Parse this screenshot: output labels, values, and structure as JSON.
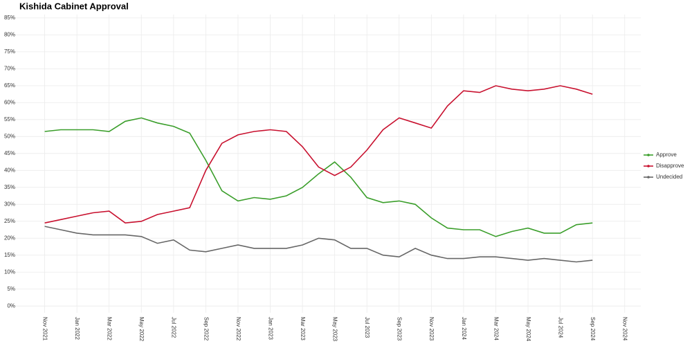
{
  "chart_data": {
    "type": "line",
    "title": "Kishida Cabinet Approval",
    "x": [
      "2021-11",
      "2021-12",
      "2022-01",
      "2022-02",
      "2022-03",
      "2022-04",
      "2022-05",
      "2022-06",
      "2022-07",
      "2022-08",
      "2022-09",
      "2022-10",
      "2022-11",
      "2022-12",
      "2023-01",
      "2023-02",
      "2023-03",
      "2023-04",
      "2023-05",
      "2023-06",
      "2023-07",
      "2023-08",
      "2023-09",
      "2023-10",
      "2023-11",
      "2023-12",
      "2024-01",
      "2024-02",
      "2024-03",
      "2024-04",
      "2024-05",
      "2024-06",
      "2024-07",
      "2024-08",
      "2024-09"
    ],
    "series": [
      {
        "name": "Approve",
        "color": "#3a9e2a",
        "values": [
          51.5,
          52,
          52,
          52,
          51.5,
          54.5,
          55.5,
          54,
          53,
          51,
          43,
          34,
          31,
          32,
          31.5,
          32.5,
          35,
          39,
          42.5,
          38,
          32,
          30.5,
          31,
          30,
          26,
          23,
          22.5,
          22.5,
          20.5,
          22,
          23,
          21.5,
          21.5,
          24,
          24.5
        ]
      },
      {
        "name": "Disapprove",
        "color": "#c8102e",
        "values": [
          24.5,
          25.5,
          26.5,
          27.5,
          28,
          24.5,
          25,
          27,
          28,
          29,
          40,
          48,
          50.5,
          51.5,
          52,
          51.5,
          47,
          41,
          38.5,
          41,
          46,
          52,
          55.5,
          54,
          52.5,
          59,
          63.5,
          63,
          65,
          64,
          63.5,
          64,
          65,
          64,
          62.5
        ]
      },
      {
        "name": "Undecided",
        "color": "#666666",
        "values": [
          23.5,
          22.5,
          21.5,
          21,
          21,
          21,
          20.5,
          18.5,
          19.5,
          16.5,
          16,
          17,
          18,
          17,
          17,
          17,
          18,
          20,
          19.5,
          17,
          17,
          15,
          14.5,
          17,
          15,
          14,
          14,
          14.5,
          14.5,
          14,
          13.5,
          14,
          13.5,
          13,
          13.5
        ]
      }
    ],
    "xlim": [
      "2021-09",
      "2024-12"
    ],
    "xticks": [
      {
        "value": "2021-11",
        "label": "Nov 2021"
      },
      {
        "value": "2022-01",
        "label": "Jan 2022"
      },
      {
        "value": "2022-03",
        "label": "Mar 2022"
      },
      {
        "value": "2022-05",
        "label": "May 2022"
      },
      {
        "value": "2022-07",
        "label": "Jul 2022"
      },
      {
        "value": "2022-09",
        "label": "Sep 2022"
      },
      {
        "value": "2022-11",
        "label": "Nov 2022"
      },
      {
        "value": "2023-01",
        "label": "Jan 2023"
      },
      {
        "value": "2023-03",
        "label": "Mar 2023"
      },
      {
        "value": "2023-05",
        "label": "May 2023"
      },
      {
        "value": "2023-07",
        "label": "Jul 2023"
      },
      {
        "value": "2023-09",
        "label": "Sep 2023"
      },
      {
        "value": "2023-11",
        "label": "Nov 2023"
      },
      {
        "value": "2024-01",
        "label": "Jan 2024"
      },
      {
        "value": "2024-03",
        "label": "Mar 2024"
      },
      {
        "value": "2024-05",
        "label": "May 2024"
      },
      {
        "value": "2024-07",
        "label": "Jul 2024"
      },
      {
        "value": "2024-09",
        "label": "Sep 2024"
      },
      {
        "value": "2024-11",
        "label": "Nov 2024"
      }
    ],
    "ylim": [
      -2,
      86
    ],
    "yticks": [
      {
        "value": 0,
        "label": "0%"
      },
      {
        "value": 5,
        "label": "5%"
      },
      {
        "value": 10,
        "label": "10%"
      },
      {
        "value": 15,
        "label": "15%"
      },
      {
        "value": 20,
        "label": "20%"
      },
      {
        "value": 25,
        "label": "25%"
      },
      {
        "value": 30,
        "label": "30%"
      },
      {
        "value": 35,
        "label": "35%"
      },
      {
        "value": 40,
        "label": "40%"
      },
      {
        "value": 45,
        "label": "45%"
      },
      {
        "value": 50,
        "label": "50%"
      },
      {
        "value": 55,
        "label": "55%"
      },
      {
        "value": 60,
        "label": "60%"
      },
      {
        "value": 65,
        "label": "65%"
      },
      {
        "value": 70,
        "label": "70%"
      },
      {
        "value": 75,
        "label": "75%"
      },
      {
        "value": 80,
        "label": "80%"
      },
      {
        "value": 85,
        "label": "85%"
      }
    ],
    "grid": true,
    "legend": "right"
  }
}
